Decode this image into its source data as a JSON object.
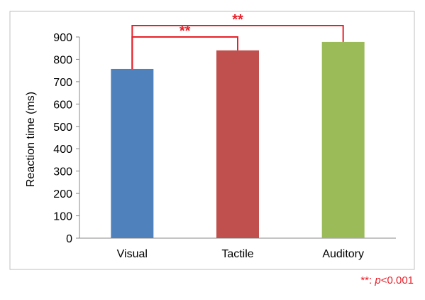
{
  "chart_data": {
    "type": "bar",
    "categories": [
      "Visual",
      "Tactile",
      "Auditory"
    ],
    "values": [
      757,
      840,
      878
    ],
    "colors": [
      "#4f81bd",
      "#c0504d",
      "#9bbb59"
    ],
    "ylabel": "Reaction time (ms)",
    "ylim": [
      0,
      900
    ],
    "yticks": [
      "0",
      "100",
      "200",
      "300",
      "400",
      "500",
      "600",
      "700",
      "800",
      "900"
    ],
    "grid": false,
    "significance": [
      {
        "from": "Visual",
        "to": "Tactile",
        "label": "**"
      },
      {
        "from": "Visual",
        "to": "Auditory",
        "label": "**"
      }
    ],
    "annotation_color": "#e8202a"
  },
  "footnote": {
    "marker": "**: ",
    "p_symbol": "p",
    "threshold": "<0.001"
  }
}
